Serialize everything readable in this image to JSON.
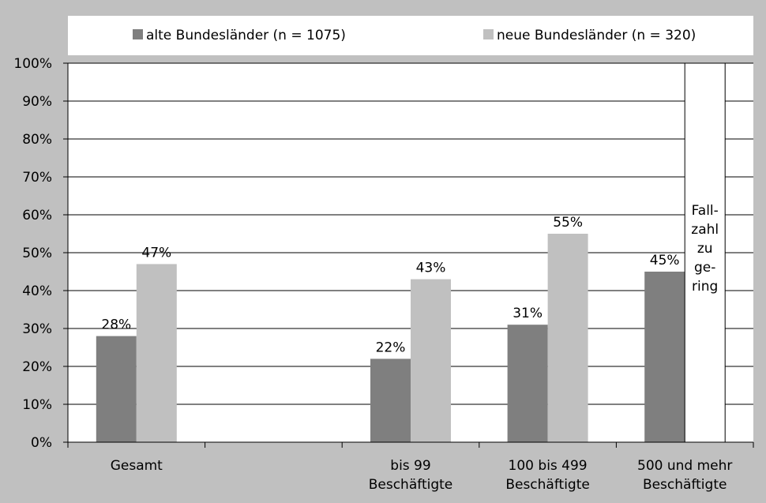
{
  "colors": {
    "background": "#c0c0c0",
    "plot": "#ffffff",
    "series_dark": "#7f7f7f",
    "series_light": "#c0c0c0"
  },
  "chart_data": {
    "type": "bar",
    "categories": [
      [
        "Gesamt"
      ],
      [],
      [
        "bis 99",
        "Beschäftigte"
      ],
      [
        "100 bis 499",
        "Beschäftigte"
      ],
      [
        "500 und mehr",
        "Beschäftigte"
      ]
    ],
    "series": [
      {
        "name": "alte Bundesländer (n = 1075)",
        "color": "#7f7f7f",
        "values": [
          28,
          null,
          22,
          31,
          45
        ],
        "labels": [
          "28%",
          "",
          "22%",
          "31%",
          "45%"
        ]
      },
      {
        "name": "neue Bundesländer (n = 320)",
        "color": "#c0c0c0",
        "values": [
          47,
          null,
          43,
          55,
          null
        ],
        "labels": [
          "47%",
          "",
          "43%",
          "55%",
          ""
        ]
      }
    ],
    "note_box": {
      "category_index": 4,
      "series_index": 1,
      "lines": [
        "Fall-",
        "zahl",
        "zu",
        "ge-",
        "ring"
      ]
    },
    "yticks": [
      "0%",
      "10%",
      "20%",
      "30%",
      "40%",
      "50%",
      "60%",
      "70%",
      "80%",
      "90%",
      "100%"
    ],
    "ylim": [
      0,
      100
    ],
    "grid": true,
    "legend_position": "top"
  }
}
